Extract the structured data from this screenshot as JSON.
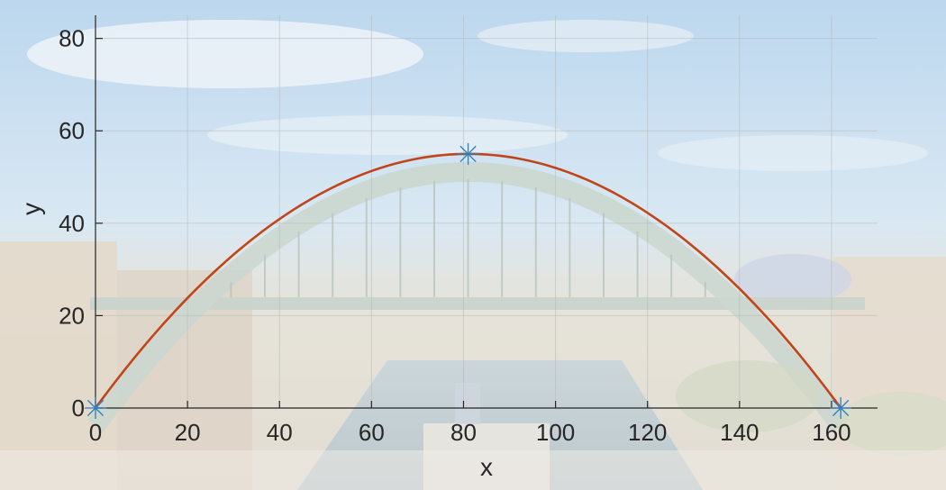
{
  "colors": {
    "fit_curve": "#c0461a",
    "markers": "#2d7fbf",
    "axis": "#262626"
  },
  "background": {
    "description_icon": "bridge-photo"
  },
  "chart_data": {
    "type": "line",
    "title": "",
    "xlabel": "x",
    "ylabel": "y",
    "xlim": [
      0,
      170
    ],
    "ylim": [
      0,
      85
    ],
    "x_ticks": [
      0,
      20,
      40,
      60,
      80,
      100,
      120,
      140,
      160
    ],
    "y_ticks": [
      0,
      20,
      40,
      60,
      80
    ],
    "grid": true,
    "series": [
      {
        "kind": "curve",
        "points": [
          [
            0,
            0
          ],
          [
            81,
            55
          ],
          [
            162,
            0
          ]
        ]
      },
      {
        "kind": "markers",
        "marker": "asterisk",
        "points": [
          [
            0,
            0
          ],
          [
            81,
            55
          ],
          [
            162,
            0
          ]
        ]
      }
    ]
  }
}
